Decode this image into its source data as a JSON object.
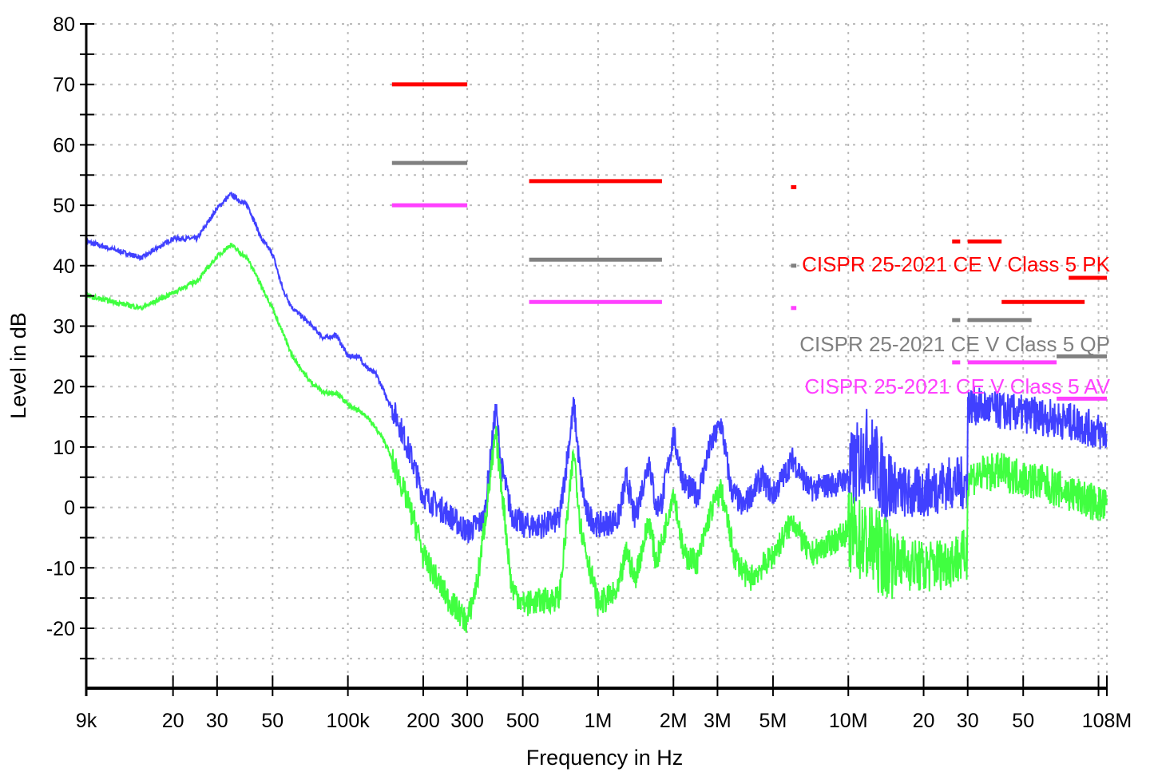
{
  "chart_data": {
    "type": "line",
    "xlabel": "Frequency in Hz",
    "ylabel": "Level in dB",
    "xscale": "log",
    "xlim": [
      9000,
      108000000
    ],
    "ylim": [
      -30,
      80
    ],
    "grid": true,
    "x_ticks": [
      {
        "value": 9000,
        "label": "9k"
      },
      {
        "value": 20000,
        "label": "20"
      },
      {
        "value": 30000,
        "label": "30"
      },
      {
        "value": 50000,
        "label": "50"
      },
      {
        "value": 100000,
        "label": "100k"
      },
      {
        "value": 200000,
        "label": "200"
      },
      {
        "value": 300000,
        "label": "300"
      },
      {
        "value": 500000,
        "label": "500"
      },
      {
        "value": 1000000,
        "label": "1M"
      },
      {
        "value": 2000000,
        "label": "2M"
      },
      {
        "value": 3000000,
        "label": "3M"
      },
      {
        "value": 5000000,
        "label": "5M"
      },
      {
        "value": 10000000,
        "label": "10M"
      },
      {
        "value": 20000000,
        "label": "20"
      },
      {
        "value": 30000000,
        "label": "30"
      },
      {
        "value": 50000000,
        "label": "50"
      },
      {
        "value": 100000000,
        "label": ""
      },
      {
        "value": 108000000,
        "label": "108M"
      }
    ],
    "y_ticks": [
      80,
      70,
      60,
      50,
      40,
      30,
      20,
      10,
      0,
      -10,
      -20
    ],
    "y_minor_step": 5,
    "limits": [
      {
        "name": "CISPR 25-2021 CE V Class 5 PK",
        "color": "#ff0000",
        "segments": [
          {
            "f": [
              150000,
              300000
            ],
            "level": 70
          },
          {
            "f": [
              530000,
              1800000
            ],
            "level": 54
          },
          {
            "f": [
              5900000,
              6200000
            ],
            "level": 53
          },
          {
            "f": [
              26000000,
              28000000
            ],
            "level": 44
          },
          {
            "f": [
              30000000,
              41000000
            ],
            "level": 44
          },
          {
            "f": [
              41000000,
              88000000
            ],
            "level": 34
          },
          {
            "f": [
              76000000,
              108000000
            ],
            "level": 38
          }
        ]
      },
      {
        "name": "CISPR 25-2021 CE V Class 5 QP",
        "color": "#808080",
        "segments": [
          {
            "f": [
              150000,
              300000
            ],
            "level": 57
          },
          {
            "f": [
              530000,
              1800000
            ],
            "level": 41
          },
          {
            "f": [
              5900000,
              6200000
            ],
            "level": 40
          },
          {
            "f": [
              26000000,
              28000000
            ],
            "level": 31
          },
          {
            "f": [
              30000000,
              54000000
            ],
            "level": 31
          },
          {
            "f": [
              68000000,
              108000000
            ],
            "level": 25
          }
        ]
      },
      {
        "name": "CISPR 25-2021 CE V Class 5 AV",
        "color": "#ff40ff",
        "segments": [
          {
            "f": [
              150000,
              300000
            ],
            "level": 50
          },
          {
            "f": [
              530000,
              1800000
            ],
            "level": 34
          },
          {
            "f": [
              5900000,
              6200000
            ],
            "level": 33
          },
          {
            "f": [
              26000000,
              28000000
            ],
            "level": 24
          },
          {
            "f": [
              30000000,
              68000000
            ],
            "level": 24
          },
          {
            "f": [
              68000000,
              108000000
            ],
            "level": 18
          }
        ]
      }
    ],
    "series": [
      {
        "color": "#4040ff",
        "points": [
          [
            9000,
            44
          ],
          [
            15000,
            41.3
          ],
          [
            20000,
            44.5
          ],
          [
            25000,
            44.5
          ],
          [
            30000,
            49.5
          ],
          [
            34000,
            51.8
          ],
          [
            40000,
            49.8
          ],
          [
            45000,
            44.5
          ],
          [
            50000,
            42
          ],
          [
            55000,
            36
          ],
          [
            60000,
            33
          ],
          [
            70000,
            30.5
          ],
          [
            80000,
            28
          ],
          [
            90000,
            28.5
          ],
          [
            100000,
            25
          ],
          [
            110000,
            25
          ],
          [
            120000,
            23
          ],
          [
            130000,
            22
          ],
          [
            140000,
            19
          ],
          [
            160000,
            14
          ],
          [
            180000,
            8
          ],
          [
            200000,
            2
          ],
          [
            250000,
            -1
          ],
          [
            300000,
            -4
          ],
          [
            350000,
            -2
          ],
          [
            390000,
            16.5
          ],
          [
            410000,
            7
          ],
          [
            450000,
            -1
          ],
          [
            500000,
            -3
          ],
          [
            600000,
            -3
          ],
          [
            700000,
            -2
          ],
          [
            800000,
            17
          ],
          [
            850000,
            5
          ],
          [
            900000,
            -1
          ],
          [
            1000000,
            -3
          ],
          [
            1200000,
            -2
          ],
          [
            1300000,
            5
          ],
          [
            1400000,
            -2
          ],
          [
            1600000,
            8
          ],
          [
            1700000,
            0
          ],
          [
            1800000,
            1
          ],
          [
            2000000,
            12
          ],
          [
            2200000,
            4
          ],
          [
            2500000,
            2
          ],
          [
            2800000,
            10
          ],
          [
            3100000,
            14
          ],
          [
            3400000,
            3
          ],
          [
            3800000,
            0
          ],
          [
            4500000,
            5
          ],
          [
            5000000,
            2
          ],
          [
            6000000,
            8
          ],
          [
            7000000,
            3
          ],
          [
            9000000,
            4
          ],
          [
            10000000,
            5
          ],
          [
            12000000,
            10
          ],
          [
            14000000,
            4
          ],
          [
            18000000,
            2
          ],
          [
            25000000,
            4
          ],
          [
            29900000,
            4
          ],
          [
            30000000,
            17
          ],
          [
            40000000,
            16
          ],
          [
            60000000,
            15
          ],
          [
            80000000,
            14
          ],
          [
            108000000,
            12
          ]
        ]
      },
      {
        "color": "#40ff40",
        "points": [
          [
            9000,
            35
          ],
          [
            15000,
            33
          ],
          [
            25000,
            37.5
          ],
          [
            30000,
            41.5
          ],
          [
            34000,
            43.5
          ],
          [
            40000,
            41
          ],
          [
            50000,
            33
          ],
          [
            60000,
            25
          ],
          [
            70000,
            21
          ],
          [
            80000,
            19
          ],
          [
            90000,
            19
          ],
          [
            100000,
            17
          ],
          [
            120000,
            15
          ],
          [
            140000,
            11
          ],
          [
            160000,
            5
          ],
          [
            190000,
            -4
          ],
          [
            200000,
            -8
          ],
          [
            250000,
            -15
          ],
          [
            300000,
            -19
          ],
          [
            330000,
            -12
          ],
          [
            390000,
            12
          ],
          [
            420000,
            0
          ],
          [
            450000,
            -13
          ],
          [
            500000,
            -16
          ],
          [
            700000,
            -15
          ],
          [
            800000,
            9.5
          ],
          [
            850000,
            -3
          ],
          [
            1000000,
            -16
          ],
          [
            1200000,
            -14
          ],
          [
            1300000,
            -7
          ],
          [
            1400000,
            -12
          ],
          [
            1600000,
            -2
          ],
          [
            1700000,
            -9
          ],
          [
            1800000,
            -6
          ],
          [
            2000000,
            3
          ],
          [
            2200000,
            -8
          ],
          [
            2500000,
            -9
          ],
          [
            2800000,
            -1
          ],
          [
            3100000,
            3
          ],
          [
            3500000,
            -8
          ],
          [
            4000000,
            -12
          ],
          [
            5000000,
            -8
          ],
          [
            6000000,
            -2
          ],
          [
            7000000,
            -8
          ],
          [
            10000000,
            -4
          ],
          [
            14000000,
            -8
          ],
          [
            20000000,
            -10
          ],
          [
            29900000,
            -8
          ],
          [
            30000000,
            5
          ],
          [
            40000000,
            6
          ],
          [
            60000000,
            4
          ],
          [
            108000000,
            0
          ]
        ]
      }
    ]
  }
}
